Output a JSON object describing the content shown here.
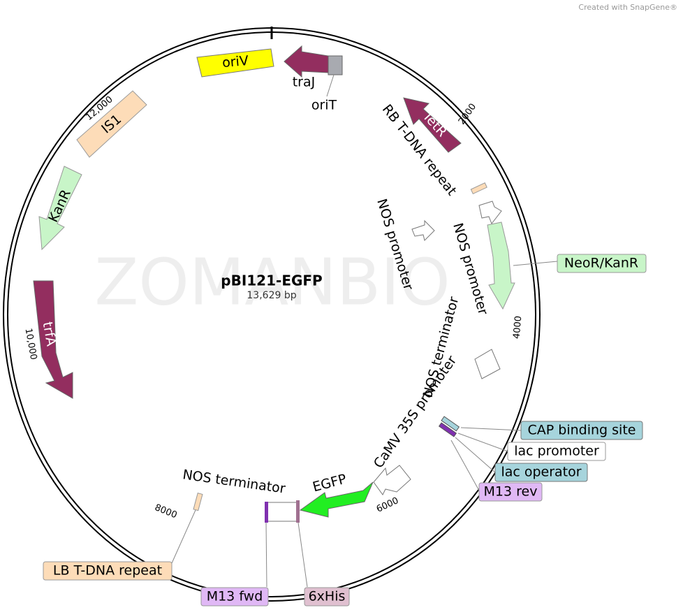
{
  "credit": "Created with SnapGene®",
  "watermark": "ZOMANBIO",
  "map": {
    "title": "pBI121-EGFP",
    "size": "13,629 bp",
    "ticks": [
      "2000",
      "4000",
      "6000",
      "8000",
      "10,000",
      "12,000"
    ],
    "features": [
      "oriV",
      "IS1",
      "KanR",
      "trfA",
      "TetR",
      "EGFP"
    ],
    "labels": [
      "traJ",
      "oriT",
      "RB T-DNA repeat",
      "NOS promoter",
      "NOS promoter",
      "NOS terminator",
      "CaMV 35S promoter",
      "EGFP",
      "NOS terminator"
    ],
    "callouts": [
      "NeoR/KanR",
      "CAP binding site",
      "lac promoter",
      "lac operator",
      "M13 rev",
      "LB T-DNA repeat",
      "M13 fwd",
      "6xHis"
    ]
  }
}
